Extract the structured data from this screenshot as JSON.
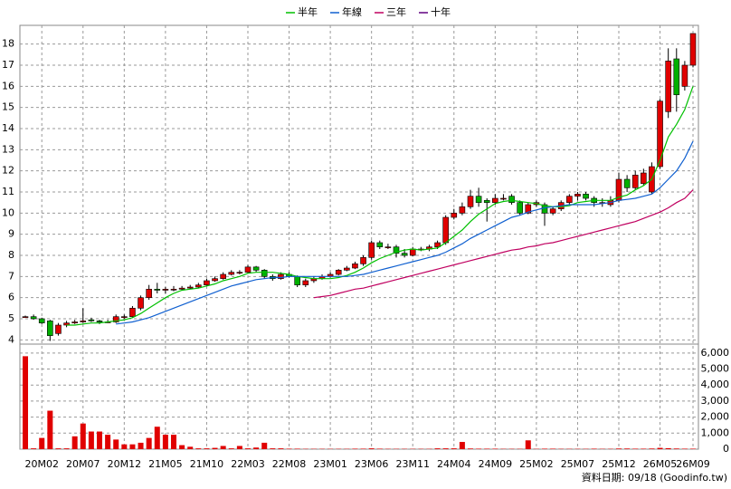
{
  "chart_data": [
    {
      "type": "candlestick",
      "categories": [
        null,
        null,
        "20M02",
        null,
        null,
        null,
        null,
        "20M07",
        null,
        null,
        null,
        null,
        "20M12",
        null,
        null,
        null,
        null,
        "21M05",
        null,
        null,
        null,
        null,
        "21M10",
        null,
        null,
        null,
        null,
        "22M03",
        null,
        null,
        null,
        null,
        "22M08",
        null,
        null,
        null,
        null,
        "23M01",
        null,
        null,
        null,
        null,
        "23M06",
        null,
        null,
        null,
        null,
        "23M11",
        null,
        null,
        null,
        null,
        "24M04",
        null,
        null,
        null,
        null,
        "24M09",
        null,
        null,
        null,
        null,
        "25M02",
        null,
        null,
        null,
        null,
        "25M07",
        null,
        null,
        null,
        null,
        "25M12",
        null,
        null,
        null,
        null,
        "26M05",
        null,
        null,
        null,
        "26M09"
      ],
      "ohlc": [
        [
          5.1,
          5.15,
          5.05,
          5.1
        ],
        [
          5.1,
          5.2,
          4.95,
          5.0
        ],
        [
          5.0,
          5.05,
          4.75,
          4.8
        ],
        [
          4.9,
          4.95,
          3.95,
          4.2
        ],
        [
          4.3,
          4.8,
          4.2,
          4.7
        ],
        [
          4.7,
          4.9,
          4.6,
          4.8
        ],
        [
          4.8,
          4.95,
          4.75,
          4.85
        ],
        [
          4.85,
          5.5,
          4.8,
          4.9
        ],
        [
          4.95,
          5.05,
          4.85,
          4.9
        ],
        [
          4.9,
          4.95,
          4.75,
          4.85
        ],
        [
          4.85,
          4.95,
          4.8,
          4.85
        ],
        [
          4.85,
          5.2,
          4.8,
          5.1
        ],
        [
          5.1,
          5.2,
          5.0,
          5.1
        ],
        [
          5.1,
          5.6,
          5.05,
          5.5
        ],
        [
          5.5,
          6.1,
          5.4,
          6.0
        ],
        [
          6.0,
          6.6,
          5.9,
          6.4
        ],
        [
          6.4,
          6.7,
          6.2,
          6.35
        ],
        [
          6.35,
          6.5,
          6.2,
          6.4
        ],
        [
          6.4,
          6.55,
          6.3,
          6.4
        ],
        [
          6.4,
          6.55,
          6.35,
          6.45
        ],
        [
          6.45,
          6.6,
          6.4,
          6.5
        ],
        [
          6.5,
          6.7,
          6.45,
          6.6
        ],
        [
          6.6,
          6.9,
          6.55,
          6.8
        ],
        [
          6.8,
          7.0,
          6.75,
          6.9
        ],
        [
          6.9,
          7.2,
          6.85,
          7.1
        ],
        [
          7.1,
          7.3,
          7.05,
          7.2
        ],
        [
          7.2,
          7.3,
          7.1,
          7.2
        ],
        [
          7.2,
          7.55,
          7.15,
          7.45
        ],
        [
          7.45,
          7.5,
          7.2,
          7.3
        ],
        [
          7.3,
          7.35,
          6.9,
          7.0
        ],
        [
          7.0,
          7.1,
          6.8,
          6.9
        ],
        [
          6.9,
          7.2,
          6.85,
          7.1
        ],
        [
          7.1,
          7.2,
          6.95,
          7.0
        ],
        [
          7.0,
          7.05,
          6.5,
          6.6
        ],
        [
          6.6,
          6.9,
          6.5,
          6.8
        ],
        [
          6.8,
          7.0,
          6.7,
          6.9
        ],
        [
          6.9,
          7.1,
          6.85,
          7.0
        ],
        [
          7.0,
          7.2,
          6.95,
          7.1
        ],
        [
          7.1,
          7.35,
          7.05,
          7.3
        ],
        [
          7.3,
          7.5,
          7.25,
          7.4
        ],
        [
          7.4,
          7.7,
          7.35,
          7.6
        ],
        [
          7.6,
          8.0,
          7.5,
          7.9
        ],
        [
          7.9,
          8.7,
          7.8,
          8.6
        ],
        [
          8.6,
          8.7,
          8.3,
          8.4
        ],
        [
          8.4,
          8.55,
          8.3,
          8.4
        ],
        [
          8.4,
          8.5,
          7.9,
          8.1
        ],
        [
          8.1,
          8.3,
          7.9,
          8.0
        ],
        [
          8.0,
          8.4,
          7.95,
          8.3
        ],
        [
          8.3,
          8.4,
          8.2,
          8.3
        ],
        [
          8.3,
          8.5,
          8.2,
          8.4
        ],
        [
          8.4,
          8.7,
          8.3,
          8.6
        ],
        [
          8.6,
          9.9,
          8.5,
          9.8
        ],
        [
          9.8,
          10.2,
          9.7,
          10.0
        ],
        [
          10.0,
          10.5,
          9.9,
          10.3
        ],
        [
          10.3,
          11.1,
          10.2,
          10.8
        ],
        [
          10.8,
          11.2,
          10.3,
          10.5
        ],
        [
          10.6,
          10.7,
          9.6,
          10.5
        ],
        [
          10.5,
          10.9,
          10.4,
          10.7
        ],
        [
          10.7,
          10.9,
          10.6,
          10.7
        ],
        [
          10.8,
          10.9,
          10.4,
          10.5
        ],
        [
          10.5,
          10.6,
          9.9,
          10.0
        ],
        [
          10.0,
          10.5,
          9.95,
          10.4
        ],
        [
          10.4,
          10.6,
          10.3,
          10.5
        ],
        [
          10.4,
          10.5,
          9.4,
          10.0
        ],
        [
          10.0,
          10.3,
          9.9,
          10.2
        ],
        [
          10.2,
          10.6,
          10.1,
          10.5
        ],
        [
          10.5,
          10.9,
          10.4,
          10.8
        ],
        [
          10.8,
          11.0,
          10.6,
          10.9
        ],
        [
          10.9,
          11.0,
          10.6,
          10.7
        ],
        [
          10.7,
          10.8,
          10.3,
          10.5
        ],
        [
          10.5,
          10.7,
          10.3,
          10.5
        ],
        [
          10.4,
          10.8,
          10.3,
          10.6
        ],
        [
          10.6,
          11.9,
          10.5,
          11.6
        ],
        [
          11.6,
          11.8,
          11.0,
          11.2
        ],
        [
          11.2,
          12.0,
          11.1,
          11.8
        ],
        [
          11.4,
          12.1,
          11.3,
          11.9
        ],
        [
          11.0,
          12.4,
          10.9,
          12.2
        ],
        [
          12.2,
          15.4,
          12.1,
          15.3
        ],
        [
          14.8,
          17.8,
          14.5,
          17.2
        ],
        [
          17.3,
          17.8,
          14.8,
          15.6
        ],
        [
          16.0,
          17.2,
          15.8,
          17.0
        ],
        [
          17.0,
          18.5,
          16.9,
          18.5
        ]
      ],
      "up_color": "#e00000",
      "down_color": "#00b000",
      "series": [
        {
          "name": "半年",
          "color": "#00c000",
          "values": [
            null,
            null,
            null,
            null,
            null,
            4.7,
            4.7,
            4.75,
            4.8,
            4.8,
            4.85,
            4.9,
            4.95,
            5.05,
            5.25,
            5.5,
            5.75,
            6.0,
            6.2,
            6.35,
            6.4,
            6.45,
            6.55,
            6.65,
            6.8,
            6.9,
            7.0,
            7.15,
            7.2,
            7.2,
            7.2,
            7.15,
            7.1,
            7.0,
            6.95,
            6.9,
            6.9,
            6.9,
            6.95,
            7.05,
            7.2,
            7.4,
            7.65,
            7.85,
            8.0,
            8.15,
            8.25,
            8.3,
            8.25,
            8.3,
            8.35,
            8.6,
            8.9,
            9.2,
            9.6,
            9.95,
            10.2,
            10.45,
            10.55,
            10.6,
            10.55,
            10.5,
            10.45,
            10.35,
            10.3,
            10.3,
            10.35,
            10.5,
            10.55,
            10.6,
            10.6,
            10.6,
            10.75,
            10.85,
            11.1,
            11.3,
            11.6,
            12.5,
            13.6,
            14.2,
            14.9,
            16.0
          ]
        },
        {
          "name": "年線",
          "color": "#1060d0",
          "values": [
            null,
            null,
            null,
            null,
            null,
            null,
            null,
            null,
            null,
            null,
            null,
            4.75,
            4.8,
            4.85,
            4.95,
            5.05,
            5.2,
            5.35,
            5.5,
            5.65,
            5.8,
            5.95,
            6.1,
            6.25,
            6.4,
            6.55,
            6.65,
            6.75,
            6.85,
            6.9,
            6.95,
            6.95,
            7.0,
            7.0,
            7.0,
            7.0,
            7.0,
            7.0,
            7.0,
            7.0,
            7.05,
            7.1,
            7.2,
            7.3,
            7.4,
            7.5,
            7.6,
            7.7,
            7.8,
            7.9,
            8.0,
            8.15,
            8.35,
            8.55,
            8.8,
            9.0,
            9.2,
            9.4,
            9.6,
            9.8,
            9.9,
            10.05,
            10.15,
            10.25,
            10.3,
            10.35,
            10.4,
            10.4,
            10.4,
            10.4,
            10.45,
            10.5,
            10.6,
            10.65,
            10.7,
            10.8,
            10.9,
            11.2,
            11.6,
            12.0,
            12.6,
            13.4
          ]
        },
        {
          "name": "三年",
          "color": "#c00060",
          "values": [
            null,
            null,
            null,
            null,
            null,
            null,
            null,
            null,
            null,
            null,
            null,
            null,
            null,
            null,
            null,
            null,
            null,
            null,
            null,
            null,
            null,
            null,
            null,
            null,
            null,
            null,
            null,
            null,
            null,
            null,
            null,
            null,
            null,
            null,
            null,
            6.0,
            6.05,
            6.1,
            6.2,
            6.3,
            6.4,
            6.45,
            6.55,
            6.65,
            6.75,
            6.85,
            6.95,
            7.05,
            7.15,
            7.25,
            7.35,
            7.45,
            7.55,
            7.65,
            7.75,
            7.85,
            7.95,
            8.05,
            8.15,
            8.25,
            8.3,
            8.4,
            8.45,
            8.55,
            8.6,
            8.7,
            8.8,
            8.9,
            9.0,
            9.1,
            9.2,
            9.3,
            9.4,
            9.5,
            9.6,
            9.75,
            9.9,
            10.05,
            10.25,
            10.5,
            10.7,
            11.1
          ]
        },
        {
          "name": "十年",
          "color": "#600080",
          "values": [
            null,
            null,
            null,
            null,
            null,
            null,
            null,
            null,
            null,
            null,
            null,
            null,
            null,
            null,
            null,
            null,
            null,
            null,
            null,
            null,
            null,
            null,
            null,
            null,
            null,
            null,
            null,
            null,
            null,
            null,
            null,
            null,
            null,
            null,
            null,
            null,
            null,
            null,
            null,
            null,
            null,
            null,
            null,
            null,
            null,
            null,
            null,
            null,
            null,
            null,
            null,
            null,
            null,
            null,
            null,
            null,
            null,
            null,
            null,
            null,
            null,
            null,
            null,
            null,
            null,
            null,
            null,
            null,
            null,
            null,
            null,
            null,
            null,
            null,
            null,
            null,
            null,
            null,
            null,
            null,
            null,
            null
          ]
        }
      ],
      "ylim": [
        3.8,
        18.8
      ],
      "yticks": [
        4,
        5,
        6,
        7,
        8,
        9,
        10,
        11,
        12,
        13,
        14,
        15,
        16,
        17,
        18
      ],
      "grid": true
    },
    {
      "type": "bar",
      "color": "#e00000",
      "values": [
        5800,
        50,
        700,
        2400,
        50,
        50,
        800,
        1600,
        1100,
        1100,
        900,
        600,
        300,
        300,
        400,
        700,
        1400,
        900,
        900,
        250,
        150,
        50,
        50,
        80,
        200,
        50,
        200,
        50,
        100,
        400,
        50,
        50,
        30,
        30,
        20,
        20,
        20,
        20,
        20,
        20,
        30,
        30,
        50,
        30,
        20,
        20,
        20,
        20,
        20,
        20,
        50,
        50,
        50,
        450,
        40,
        30,
        30,
        30,
        20,
        20,
        20,
        550,
        20,
        30,
        30,
        20,
        20,
        20,
        20,
        30,
        20,
        20,
        40,
        40,
        30,
        30,
        40,
        80,
        60,
        40,
        30,
        30
      ],
      "ylim": [
        0,
        6500
      ],
      "yticks": [
        0,
        {
          "value": 1000,
          "label": "1,000"
        },
        {
          "value": 2000,
          "label": "2,000"
        },
        {
          "value": 3000,
          "label": "3,000"
        },
        {
          "value": 4000,
          "label": "4,000"
        },
        {
          "value": 5000,
          "label": "5,000"
        },
        {
          "value": 6000,
          "label": "6,000"
        }
      ],
      "grid": true
    }
  ],
  "source": "資料日期: 09/18 (Goodinfo.tw)"
}
